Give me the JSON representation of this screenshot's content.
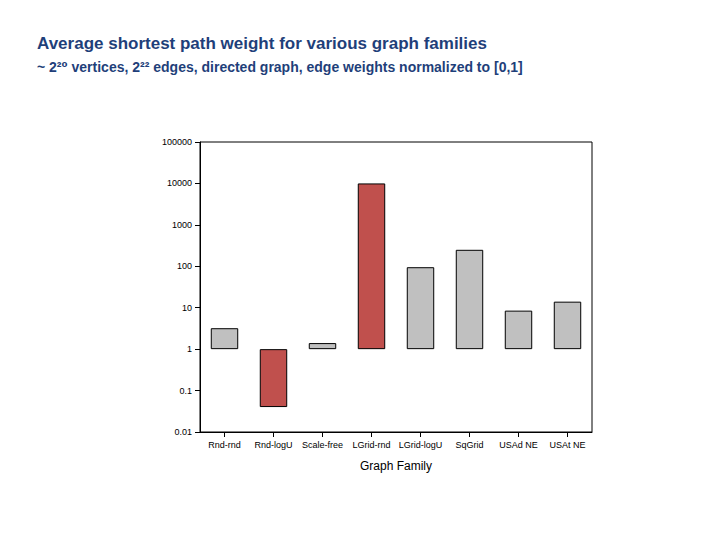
{
  "chart_data": {
    "type": "bar",
    "title": "Average shortest path weight for various graph families",
    "subtitle": "~ 2²⁰ vertices, 2²² edges, directed graph, edge weights normalized to [0,1]",
    "x_label": "Graph Family",
    "categories": [
      "Rnd-rnd",
      "Rnd-logU",
      "Scale-free",
      "LGrid-rnd",
      "LGrid-logU",
      "SqGrid",
      "USAd NE",
      "USAt NE"
    ],
    "values": [
      3.2,
      0.04,
      1.4,
      10000,
      95,
      250,
      8.5,
      14
    ],
    "colors": [
      "#c0c0c0",
      "#c0504d",
      "#c0c0c0",
      "#c0504d",
      "#c0c0c0",
      "#c0c0c0",
      "#c0c0c0",
      "#c0c0c0"
    ],
    "ylim": [
      0.01,
      100000
    ],
    "yticks": [
      0.01,
      0.1,
      1,
      10,
      100,
      1000,
      10000,
      100000
    ],
    "log": "y",
    "grid": false
  }
}
